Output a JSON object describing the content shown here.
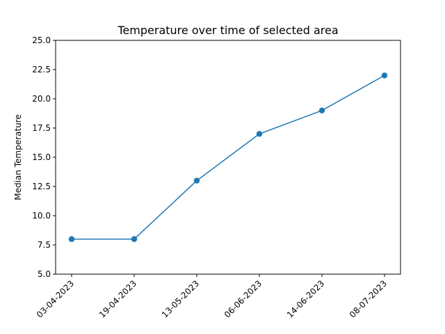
{
  "chart_data": {
    "type": "line",
    "title": "Temperature over time of selected area",
    "xlabel": "",
    "ylabel": "Median Temperature",
    "categories": [
      "03-04-2023",
      "19-04-2023",
      "13-05-2023",
      "06-06-2023",
      "14-06-2023",
      "08-07-2023"
    ],
    "series": [
      {
        "values": [
          8,
          8,
          13,
          17,
          19,
          22
        ],
        "color": "#1f77b4"
      }
    ],
    "ylim": [
      5,
      25
    ],
    "yticks": [
      5.0,
      7.5,
      10.0,
      12.5,
      15.0,
      17.5,
      20.0,
      22.5,
      25.0
    ],
    "ytick_labels": [
      "5.0",
      "7.5",
      "10.0",
      "12.5",
      "15.0",
      "17.5",
      "20.0",
      "22.5",
      "25.0"
    ],
    "grid": false,
    "legend": "none",
    "marker": "circle"
  }
}
